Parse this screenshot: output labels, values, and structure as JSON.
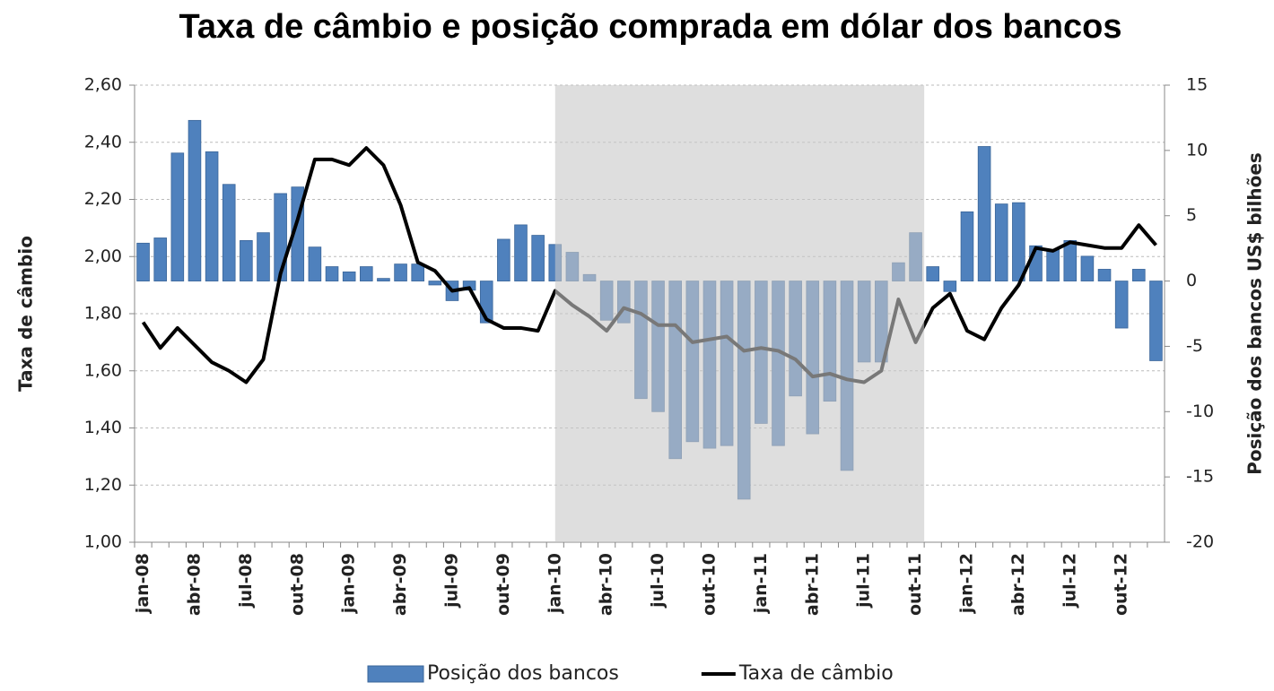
{
  "chart_data": {
    "type": "combo",
    "title": "Taxa de câmbio e posição comprada em dólar dos bancos",
    "y_label": "Taxa de câmbio",
    "y2_label": "Posição dos bancos US$ bilhões",
    "categories": [
      "jan-08",
      null,
      null,
      "abr-08",
      null,
      null,
      "jul-08",
      null,
      null,
      "out-08",
      null,
      null,
      "jan-09",
      null,
      null,
      "abr-09",
      null,
      null,
      "jul-09",
      null,
      null,
      "out-09",
      null,
      null,
      "jan-10",
      null,
      null,
      "abr-10",
      null,
      null,
      "jul-10",
      null,
      null,
      "out-10",
      null,
      null,
      "jan-11",
      null,
      null,
      "abr-11",
      null,
      null,
      "jul-11",
      null,
      null,
      "out-11",
      null,
      null,
      "jan-12",
      null,
      null,
      "abr-12",
      null,
      null,
      "jul-12",
      null,
      null,
      "out-12",
      null,
      null
    ],
    "series": [
      {
        "name": "Posição dos bancos",
        "type": "bar",
        "axis": "y2",
        "color": "#4f81bd",
        "values": [
          2.9,
          3.3,
          9.8,
          12.3,
          9.9,
          7.4,
          3.1,
          3.7,
          6.7,
          7.2,
          2.6,
          1.1,
          0.7,
          1.1,
          0.2,
          1.3,
          1.3,
          -0.3,
          -1.5,
          -0.7,
          -3.2,
          3.2,
          4.3,
          3.5,
          2.8,
          2.2,
          0.5,
          -3.0,
          -3.2,
          -9.0,
          -10.0,
          -13.6,
          -12.3,
          -12.8,
          -12.6,
          -16.7,
          -10.9,
          -12.6,
          -8.8,
          -11.7,
          -9.2,
          -14.5,
          -6.2,
          -6.2,
          1.4,
          3.7,
          1.1,
          -0.8,
          5.3,
          10.3,
          5.9,
          6.0,
          2.7,
          2.4,
          3.1,
          1.9,
          0.9,
          -3.6,
          0.9,
          -6.1
        ]
      },
      {
        "name": "Taxa de câmbio",
        "type": "line",
        "axis": "y",
        "color": "#000000",
        "values": [
          1.77,
          1.68,
          1.75,
          1.69,
          1.63,
          1.6,
          1.56,
          1.64,
          1.94,
          2.13,
          2.34,
          2.34,
          2.32,
          2.38,
          2.32,
          2.18,
          1.98,
          1.95,
          1.88,
          1.89,
          1.78,
          1.75,
          1.75,
          1.74,
          1.88,
          1.83,
          1.79,
          1.74,
          1.82,
          1.8,
          1.76,
          1.76,
          1.7,
          1.71,
          1.72,
          1.67,
          1.68,
          1.67,
          1.64,
          1.58,
          1.59,
          1.57,
          1.56,
          1.6,
          1.85,
          1.7,
          1.82,
          1.87,
          1.74,
          1.71,
          1.82,
          1.9,
          2.03,
          2.02,
          2.05,
          2.04,
          2.03,
          2.03,
          2.11,
          2.04
        ]
      }
    ],
    "ylim": [
      1.0,
      2.6
    ],
    "yticks": [
      {
        "value": 1.0,
        "label": "1,00"
      },
      {
        "value": 1.2,
        "label": "1,20"
      },
      {
        "value": 1.4,
        "label": "1,40"
      },
      {
        "value": 1.6,
        "label": "1,60"
      },
      {
        "value": 1.8,
        "label": "1,80"
      },
      {
        "value": 2.0,
        "label": "2,00"
      },
      {
        "value": 2.2,
        "label": "2,20"
      },
      {
        "value": 2.4,
        "label": "2,40"
      },
      {
        "value": 2.6,
        "label": "2,60"
      }
    ],
    "y2lim": [
      -20,
      15
    ],
    "y2ticks": [
      -20,
      -15,
      -10,
      -5,
      0,
      5,
      10,
      15
    ],
    "grid": true,
    "shade": {
      "from": 24,
      "to": 45,
      "color": "#c8c8c8"
    },
    "legend": "bottom"
  }
}
